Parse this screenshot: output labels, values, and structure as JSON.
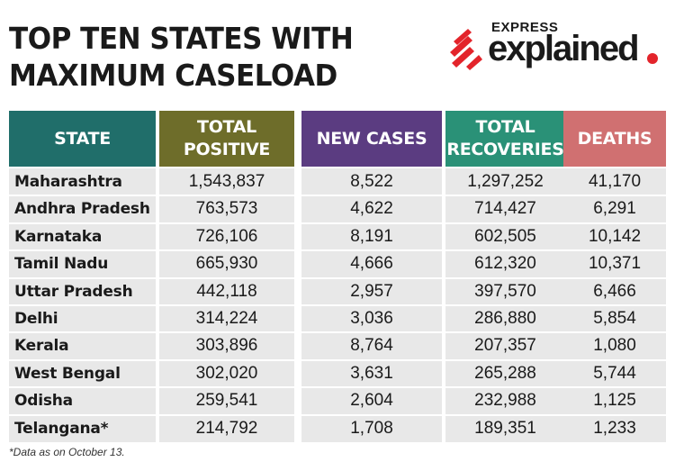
{
  "title": {
    "line1": "TOP TEN STATES WITH",
    "line2": "MAXIMUM CASELOAD"
  },
  "logo": {
    "top": "EXPRESS",
    "main": "explained",
    "accent_color": "#e3242b"
  },
  "table": {
    "headers": [
      {
        "line1": "STATE",
        "line2": "",
        "color": "#206e6a"
      },
      {
        "line1": "TOTAL",
        "line2": "POSITIVE",
        "color": "#6e6d2a"
      },
      {
        "line1": "NEW CASES",
        "line2": "",
        "color": "#5b3c81"
      },
      {
        "line1": "TOTAL",
        "line2": "RECOVERIES",
        "color": "#2a9177"
      },
      {
        "line1": "DEATHS",
        "line2": "",
        "color": "#d07071"
      }
    ],
    "rows": [
      [
        "Maharashtra",
        "1,543,837",
        "8,522",
        "1,297,252",
        "41,170"
      ],
      [
        "Andhra Pradesh",
        "763,573",
        "4,622",
        "714,427",
        "6,291"
      ],
      [
        "Karnataka",
        "726,106",
        "8,191",
        "602,505",
        "10,142"
      ],
      [
        "Tamil Nadu",
        "665,930",
        "4,666",
        "612,320",
        "10,371"
      ],
      [
        "Uttar Pradesh",
        "442,118",
        "2,957",
        "397,570",
        "6,466"
      ],
      [
        "Delhi",
        "314,224",
        "3,036",
        "286,880",
        "5,854"
      ],
      [
        "Kerala",
        "303,896",
        "8,764",
        "207,357",
        "1,080"
      ],
      [
        "West Bengal",
        "302,020",
        "3,631",
        "265,288",
        "5,744"
      ],
      [
        "Odisha",
        "259,541",
        "2,604",
        "232,988",
        "1,125"
      ],
      [
        "Telangana*",
        "214,792",
        "1,708",
        "189,351",
        "1,233"
      ]
    ]
  },
  "footnote": "*Data as on October 13."
}
